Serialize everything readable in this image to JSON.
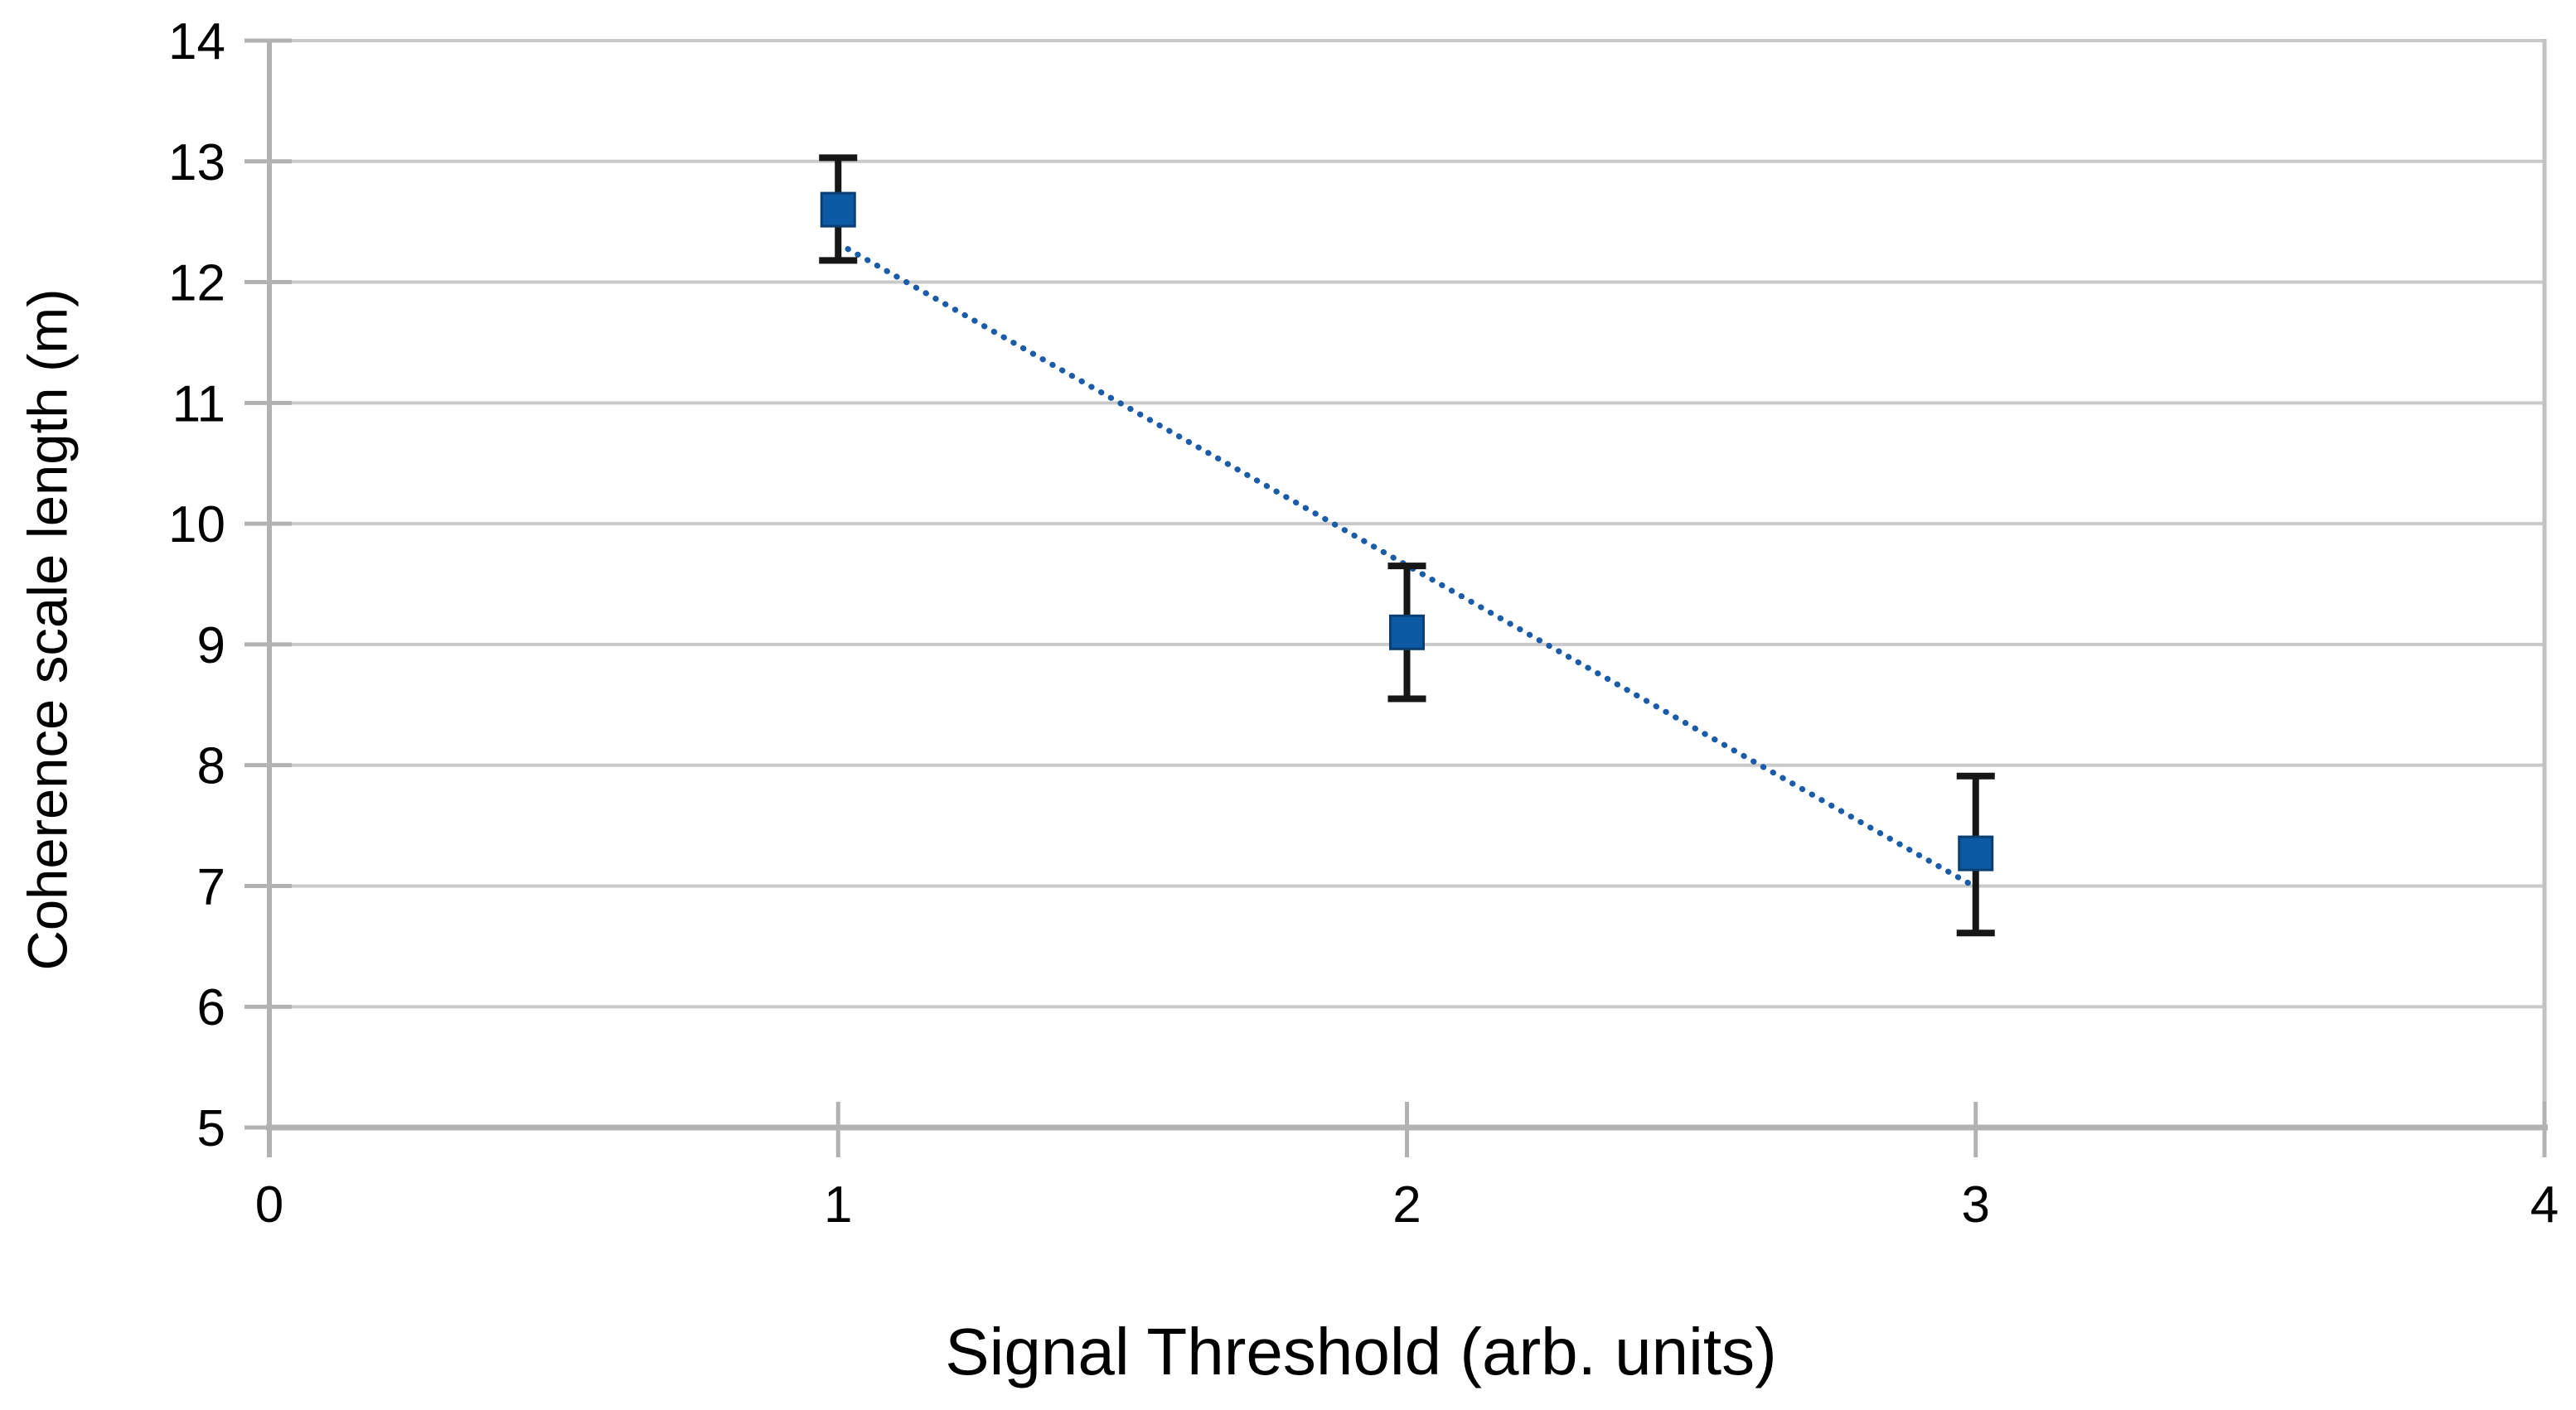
{
  "chart_data": {
    "type": "scatter",
    "title": "",
    "xlabel": "Signal Threshold (arb. units)",
    "ylabel": "Coherence scale length (m)",
    "xlim": [
      0,
      4
    ],
    "ylim": [
      5,
      14
    ],
    "x_ticks": [
      0,
      1,
      2,
      3,
      4
    ],
    "y_ticks": [
      5,
      6,
      7,
      8,
      9,
      10,
      11,
      12,
      13,
      14
    ],
    "grid": "horizontal",
    "legend": "none",
    "series": [
      {
        "name": "Coherence scale length",
        "marker": "square",
        "points": [
          {
            "x": 1,
            "y": 12.6,
            "err_up": 0.43,
            "err_down": 0.42
          },
          {
            "x": 2,
            "y": 9.1,
            "err_up": 0.55,
            "err_down": 0.55
          },
          {
            "x": 3,
            "y": 7.27,
            "err_up": 0.64,
            "err_down": 0.66
          }
        ]
      }
    ],
    "trend_line": {
      "style": "dotted",
      "equation_slope": -2.67,
      "equation_intercept": 14.99,
      "x_start": 1.0,
      "y_start": 12.32,
      "x_end": 3.0,
      "y_end": 6.99
    },
    "colors": {
      "marker_fill": "#0d5aa4",
      "marker_edge": "#0a3f74",
      "error_bar": "#161616",
      "trend_line": "#1a5ca8",
      "gridline": "#c9c9c9",
      "axis_line": "#b2b2b2",
      "right_border": "#c2c2c2",
      "text": "#000000"
    }
  }
}
